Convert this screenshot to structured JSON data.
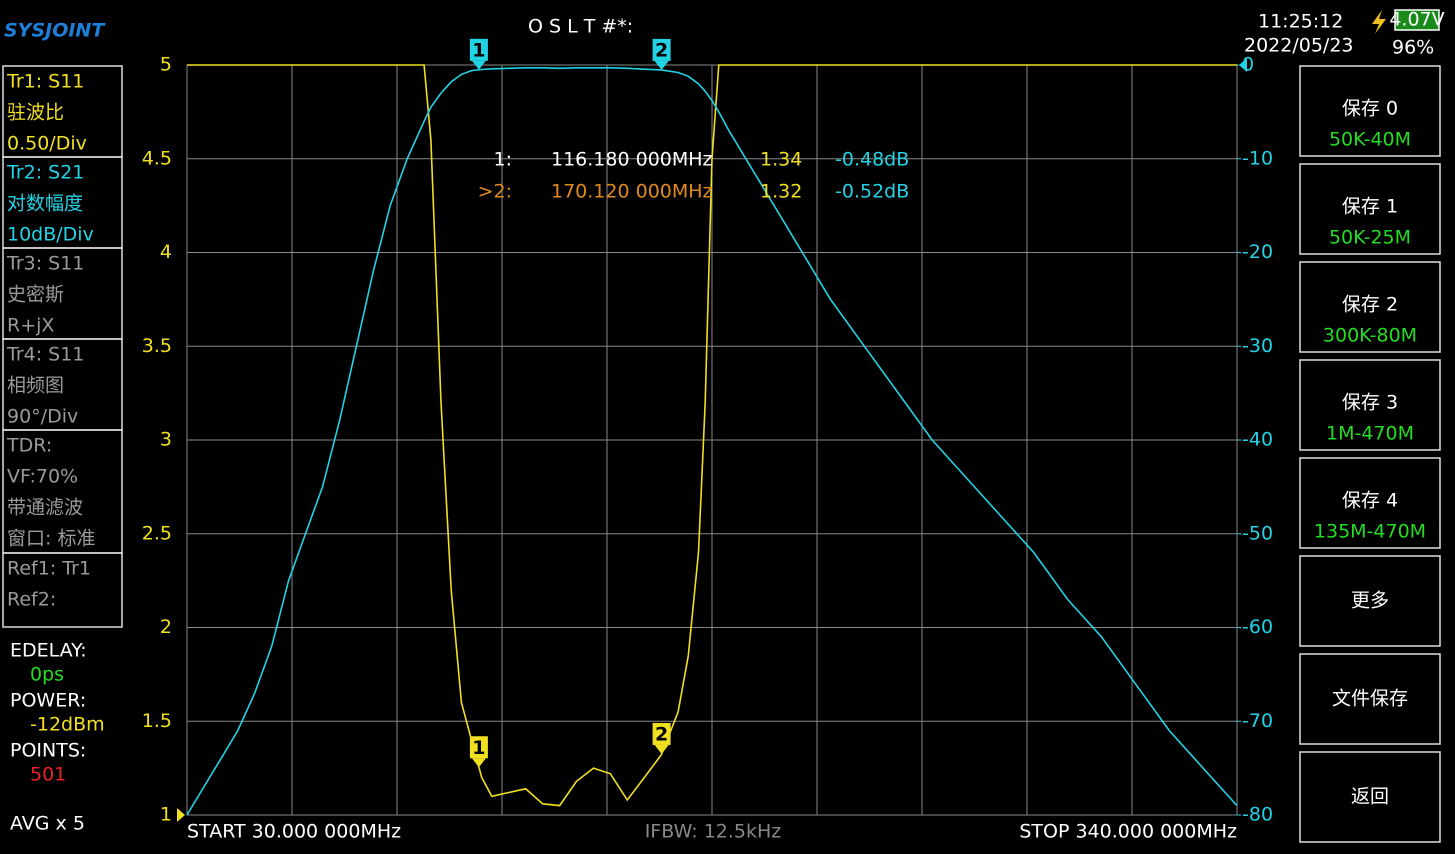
{
  "header": {
    "logo": "SYSJOINT",
    "cal": "O S L T #*:",
    "time": "11:25:12",
    "date": "2022/05/23",
    "battery_voltage": "4.07V",
    "battery_percent": "96%"
  },
  "left_panel": {
    "boxes": [
      [
        "Tr1:   S11",
        "驻波比",
        "0.50/Div"
      ],
      [
        "Tr2:   S21",
        "对数幅度",
        "10dB/Div"
      ],
      [
        "Tr3:   S11",
        "史密斯",
        "R+jX"
      ],
      [
        "Tr4:   S11",
        "相频图",
        "90°/Div"
      ],
      [
        "TDR:",
        "VF:70%",
        "带通滤波",
        "窗口: 标准"
      ],
      [
        "Ref1:  Tr1",
        "Ref2:"
      ]
    ],
    "status": [
      {
        "label": "EDELAY:",
        "value": "0ps"
      },
      {
        "label": "POWER:",
        "value": "-12dBm"
      },
      {
        "label": "POINTS:",
        "value": "501"
      }
    ],
    "avg": "AVG x 5"
  },
  "right_menu": [
    [
      "保存 0",
      "50K-40M"
    ],
    [
      "保存 1",
      "50K-25M"
    ],
    [
      "保存 2",
      "300K-80M"
    ],
    [
      "保存 3",
      "1M-470M"
    ],
    [
      "保存 4",
      "135M-470M"
    ],
    [
      "更多"
    ],
    [
      "文件保存"
    ],
    [
      "返回"
    ]
  ],
  "chart_data": {
    "type": "line",
    "start_label": "START   30.000 000MHz",
    "stop_label": "STOP  340.000 000MHz",
    "ifbw_label": "IFBW: 12.5kHz",
    "x": [
      30,
      35,
      40,
      45,
      50,
      55,
      60,
      65,
      70,
      75,
      80,
      85,
      90,
      95,
      100,
      102,
      105,
      108,
      111,
      114,
      117,
      120,
      125,
      130,
      135,
      140,
      145,
      150,
      155,
      160,
      165,
      170,
      175,
      178,
      181,
      183,
      185,
      187,
      190,
      195,
      200,
      210,
      220,
      230,
      240,
      250,
      260,
      270,
      280,
      290,
      300,
      310,
      320,
      330,
      340
    ],
    "xlim": [
      30,
      340
    ],
    "xticks": [
      30,
      61,
      92,
      123,
      154,
      185,
      216,
      247,
      278,
      309,
      340
    ],
    "ylim": [
      1,
      5
    ],
    "yticks": [
      1,
      1.5,
      2,
      2.5,
      3,
      3.5,
      4,
      4.5,
      5
    ],
    "y2lim": [
      -80,
      0
    ],
    "y2ticks": [
      -80,
      -70,
      -60,
      -50,
      -40,
      -30,
      -20,
      -10,
      0
    ],
    "grid": true,
    "series": [
      {
        "name": "Tr1",
        "color": "#f0e020",
        "values": [
          5,
          5,
          5,
          5,
          5,
          5,
          5,
          5,
          5,
          5,
          5,
          5,
          5,
          5,
          5,
          4.6,
          3.2,
          2.2,
          1.6,
          1.4,
          1.2,
          1.1,
          1.12,
          1.14,
          1.06,
          1.05,
          1.18,
          1.25,
          1.22,
          1.08,
          1.2,
          1.32,
          1.55,
          1.85,
          2.4,
          3.2,
          4.5,
          5,
          5,
          5,
          5,
          5,
          5,
          5,
          5,
          5,
          5,
          5,
          5,
          5,
          5,
          5,
          5,
          5,
          5
        ]
      },
      {
        "name": "Tr2",
        "color": "#22d3e6",
        "axis": "y2",
        "values": [
          -80,
          -77,
          -74,
          -71,
          -67,
          -62,
          -55,
          -50,
          -45,
          -38,
          -30,
          -22,
          -15,
          -10,
          -6,
          -4.5,
          -3,
          -1.8,
          -1,
          -0.6,
          -0.48,
          -0.4,
          -0.35,
          -0.3,
          -0.3,
          -0.35,
          -0.3,
          -0.3,
          -0.3,
          -0.35,
          -0.45,
          -0.52,
          -0.8,
          -1.2,
          -2,
          -2.8,
          -3.8,
          -5,
          -7,
          -10,
          -13,
          -19,
          -25,
          -30,
          -35,
          -40,
          -44,
          -48,
          -52,
          -57,
          -61,
          -66,
          -71,
          -75,
          -79
        ]
      }
    ],
    "markers": [
      {
        "label": "1",
        "x": 116.18,
        "id_text": "1:",
        "freq_text": "116.180 000MHz",
        "swr_text": "1.34",
        "db_text": "-0.48dB"
      },
      {
        "label": "2",
        "x": 170.12,
        "id_text": ">2:",
        "freq_text": "170.120 000MHz",
        "swr_text": "1.32",
        "db_text": "-0.52dB"
      }
    ]
  }
}
